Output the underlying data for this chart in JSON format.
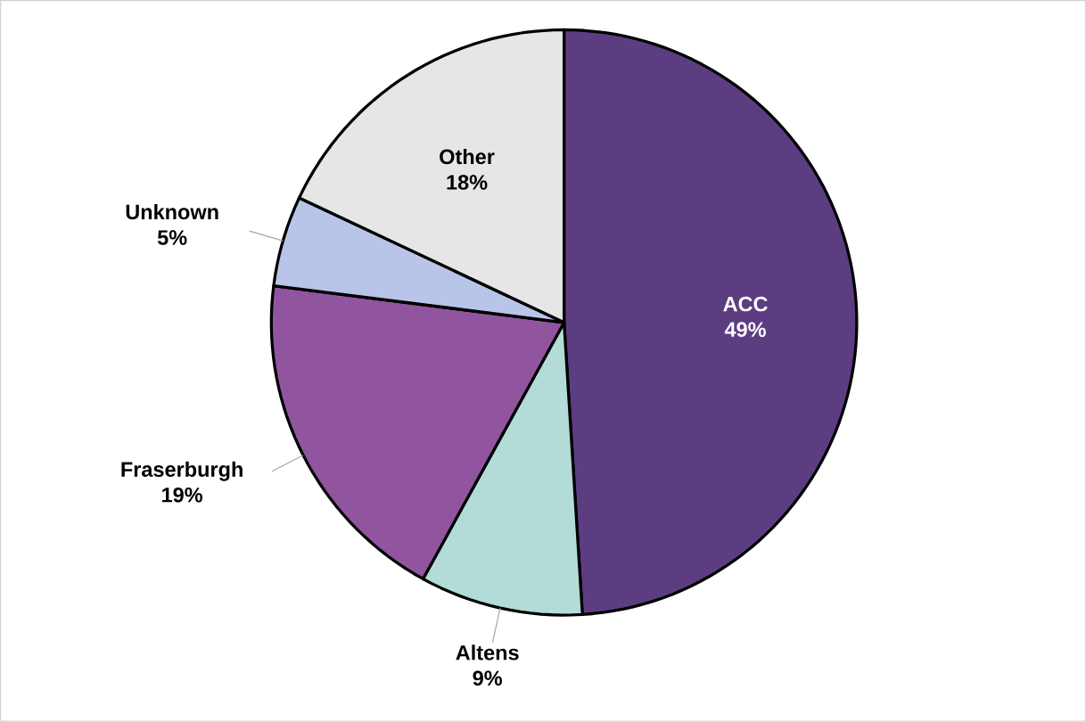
{
  "chart_data": {
    "type": "pie",
    "categories": [
      "ACC",
      "Altens",
      "Fraserburgh",
      "Unknown",
      "Other"
    ],
    "values": [
      49,
      9,
      19,
      5,
      18
    ],
    "colors": [
      "#5c3d82",
      "#b3dbd8",
      "#9155a0",
      "#b8c4e8",
      "#e6e6e6"
    ],
    "value_labels": [
      "49%",
      "9%",
      "19%",
      "5%",
      "18%"
    ]
  }
}
